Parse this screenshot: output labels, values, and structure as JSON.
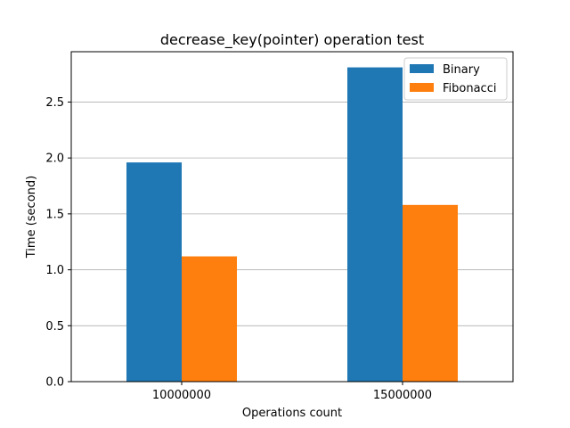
{
  "chart_data": {
    "type": "bar",
    "title": "decrease_key(pointer) operation test",
    "xlabel": "Operations count",
    "ylabel": "Time (second)",
    "categories": [
      "10000000",
      "15000000"
    ],
    "series": [
      {
        "name": "Binary",
        "values": [
          1.96,
          2.81
        ],
        "color": "#1f77b4"
      },
      {
        "name": "Fibonacci",
        "values": [
          1.12,
          1.58
        ],
        "color": "#ff7f0e"
      }
    ],
    "ylim": [
      0,
      2.95
    ],
    "yticks": [
      "0.0",
      "0.5",
      "1.0",
      "1.5",
      "2.0",
      "2.5"
    ],
    "grid": "y",
    "legend_position": "top-right"
  }
}
